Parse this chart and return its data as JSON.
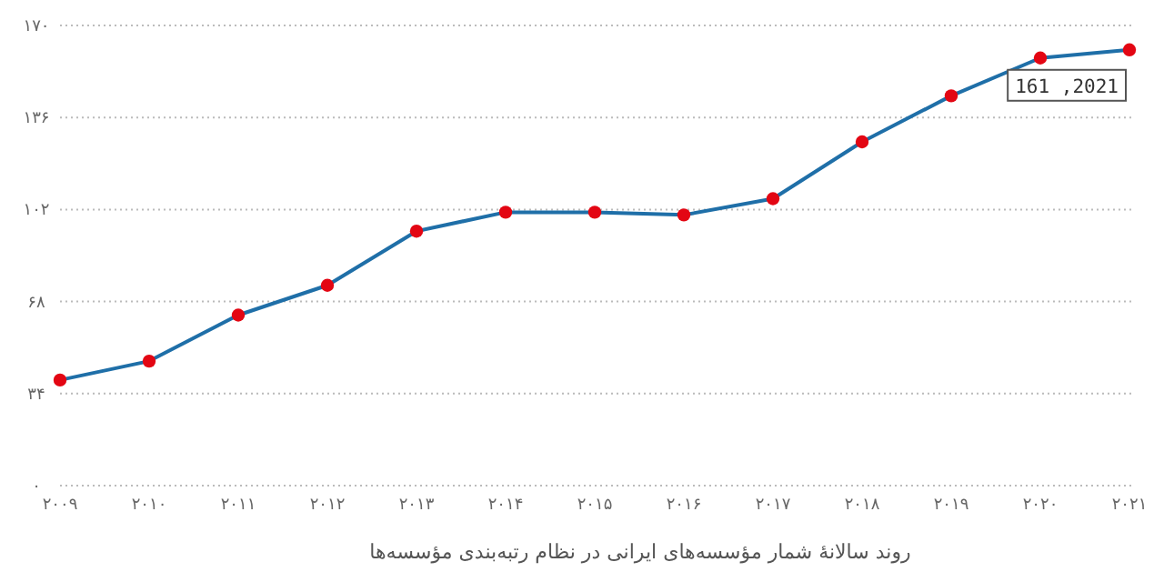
{
  "chart_data": {
    "type": "line",
    "xlabel": "روند سالانهٔ شمار مؤسسه‌های ایرانی در نظام رتبه‌بندی مؤسسه‌ها",
    "x": [
      2009,
      2010,
      2011,
      2012,
      2013,
      2014,
      2015,
      2016,
      2017,
      2018,
      2019,
      2020,
      2021
    ],
    "values": [
      39,
      46,
      63,
      74,
      94,
      101,
      101,
      100,
      106,
      127,
      144,
      158,
      161
    ],
    "color": "#1f6fa8",
    "marker": "circle",
    "grid": "y",
    "xlim": [
      2009,
      2021
    ],
    "ylim": [
      0,
      170
    ],
    "xticks": [
      {
        "value": 2009,
        "label": "۲۰۰۹"
      },
      {
        "value": 2010,
        "label": "۲۰۱۰"
      },
      {
        "value": 2011,
        "label": "۲۰۱۱"
      },
      {
        "value": 2012,
        "label": "۲۰۱۲"
      },
      {
        "value": 2013,
        "label": "۲۰۱۳"
      },
      {
        "value": 2014,
        "label": "۲۰۱۴"
      },
      {
        "value": 2015,
        "label": "۲۰۱۵"
      },
      {
        "value": 2016,
        "label": "۲۰۱۶"
      },
      {
        "value": 2017,
        "label": "۲۰۱۷"
      },
      {
        "value": 2018,
        "label": "۲۰۱۸"
      },
      {
        "value": 2019,
        "label": "۲۰۱۹"
      },
      {
        "value": 2020,
        "label": "۲۰۲۰"
      },
      {
        "value": 2021,
        "label": "۲۰۲۱"
      }
    ],
    "yticks": [
      {
        "value": 0,
        "label": "۰"
      },
      {
        "value": 34,
        "label": "۳۴"
      },
      {
        "value": 68,
        "label": "۶۸"
      },
      {
        "value": 102,
        "label": "۱۰۲"
      },
      {
        "value": 136,
        "label": "۱۳۶"
      },
      {
        "value": 170,
        "label": "۱۷۰"
      }
    ],
    "annotations": [
      {
        "text": "161 ,2021",
        "x": 2021,
        "y": 161
      }
    ]
  }
}
